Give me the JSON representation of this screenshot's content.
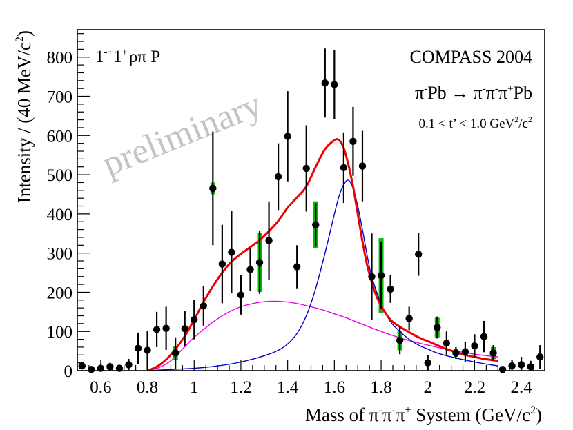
{
  "chart_data": {
    "type": "scatter",
    "title": "",
    "xlabel": {
      "main": "Mass of π",
      "s1": "-",
      "mid1": "π",
      "s2": "-",
      "mid2": "π",
      "s3": "+",
      "tail": " System (GeV/c",
      "s4": "2",
      "close": ")"
    },
    "ylabel": {
      "main": "Intensity / (40 MeV/c",
      "sup": "2",
      "close": ")"
    },
    "xlim": [
      0.5,
      2.5
    ],
    "ylim": [
      0,
      870
    ],
    "x_major_ticks": [
      0.6,
      0.8,
      1.0,
      1.2,
      1.4,
      1.6,
      1.8,
      2.0,
      2.2,
      2.4
    ],
    "x_tick_labels": [
      "0.6",
      "0.8",
      "1",
      "1.2",
      "1.4",
      "1.6",
      "1.8",
      "2",
      "2.2",
      "2.4"
    ],
    "y_major_ticks": [
      0,
      100,
      200,
      300,
      400,
      500,
      600,
      700,
      800
    ],
    "y_tick_labels": [
      "0",
      "100",
      "200",
      "300",
      "400",
      "500",
      "600",
      "700",
      "800"
    ],
    "annotations": {
      "wave": {
        "a": "1",
        "b": "-+",
        "c": "1",
        "d": "+",
        "e": "ρπ P"
      },
      "experiment": "COMPASS 2004",
      "reaction": {
        "a": "π",
        "b": "-",
        "c": "Pb → π",
        "d": "-",
        "e": "π",
        "f": "-",
        "g": "π",
        "h": "+",
        "i": "Pb"
      },
      "tcut": {
        "a": "0.1 < t’ < 1.0 GeV",
        "b": "2",
        "c": "/c",
        "d": "2"
      },
      "watermark": "preliminary"
    },
    "colors": {
      "total_fit": "#ee0000",
      "resonance": "#0000cc",
      "background": "#ee00ee",
      "systematic": "#00bb00",
      "points": "#000000"
    },
    "points": [
      {
        "x": 0.52,
        "y": 12,
        "err": 8
      },
      {
        "x": 0.56,
        "y": 3,
        "err": 5
      },
      {
        "x": 0.6,
        "y": 6,
        "err": 8
      },
      {
        "x": 0.64,
        "y": 10,
        "err": 10
      },
      {
        "x": 0.68,
        "y": 6,
        "err": 8
      },
      {
        "x": 0.72,
        "y": 15,
        "err": 15
      },
      {
        "x": 0.76,
        "y": 57,
        "err": 40
      },
      {
        "x": 0.8,
        "y": 52,
        "err": 50
      },
      {
        "x": 0.84,
        "y": 105,
        "err": 45
      },
      {
        "x": 0.88,
        "y": 108,
        "err": 55
      },
      {
        "x": 0.92,
        "y": 45,
        "err": 40,
        "sys": 18
      },
      {
        "x": 0.96,
        "y": 107,
        "err": 45
      },
      {
        "x": 1.0,
        "y": 130,
        "err": 50
      },
      {
        "x": 1.04,
        "y": 165,
        "err": 50
      },
      {
        "x": 1.08,
        "y": 465,
        "err": 145,
        "sys": 15
      },
      {
        "x": 1.12,
        "y": 272,
        "err": 100
      },
      {
        "x": 1.16,
        "y": 302,
        "err": 105
      },
      {
        "x": 1.2,
        "y": 193,
        "err": 50
      },
      {
        "x": 1.24,
        "y": 258,
        "err": 55
      },
      {
        "x": 1.28,
        "y": 276,
        "err": 80,
        "sys": 75
      },
      {
        "x": 1.32,
        "y": 332,
        "err": 100
      },
      {
        "x": 1.36,
        "y": 495,
        "err": 85
      },
      {
        "x": 1.4,
        "y": 598,
        "err": 115
      },
      {
        "x": 1.44,
        "y": 265,
        "err": 55
      },
      {
        "x": 1.48,
        "y": 516,
        "err": 110
      },
      {
        "x": 1.52,
        "y": 372,
        "err": 55,
        "sys": 60
      },
      {
        "x": 1.56,
        "y": 734,
        "err": 88
      },
      {
        "x": 1.6,
        "y": 730,
        "err": 88
      },
      {
        "x": 1.64,
        "y": 518,
        "err": 90
      },
      {
        "x": 1.68,
        "y": 585,
        "err": 88
      },
      {
        "x": 1.72,
        "y": 522,
        "err": 90
      },
      {
        "x": 1.76,
        "y": 240,
        "err": 110
      },
      {
        "x": 1.8,
        "y": 243,
        "err": 85,
        "sys": 95
      },
      {
        "x": 1.84,
        "y": 208,
        "err": 35
      },
      {
        "x": 1.88,
        "y": 77,
        "err": 35,
        "sys": 25
      },
      {
        "x": 1.92,
        "y": 133,
        "err": 30
      },
      {
        "x": 1.96,
        "y": 297,
        "err": 55
      },
      {
        "x": 2.0,
        "y": 20,
        "err": 20
      },
      {
        "x": 2.04,
        "y": 110,
        "err": 28,
        "sys": 25
      },
      {
        "x": 2.08,
        "y": 70,
        "err": 30
      },
      {
        "x": 2.12,
        "y": 45,
        "err": 15,
        "sys": 10
      },
      {
        "x": 2.16,
        "y": 48,
        "err": 25
      },
      {
        "x": 2.2,
        "y": 63,
        "err": 30
      },
      {
        "x": 2.24,
        "y": 87,
        "err": 40
      },
      {
        "x": 2.28,
        "y": 45,
        "err": 20,
        "sys": 15
      },
      {
        "x": 2.32,
        "y": 3,
        "err": 5
      },
      {
        "x": 2.36,
        "y": 12,
        "err": 15
      },
      {
        "x": 2.4,
        "y": 15,
        "err": 20
      },
      {
        "x": 2.44,
        "y": 10,
        "err": 15
      },
      {
        "x": 2.48,
        "y": 35,
        "err": 30
      }
    ],
    "curves": [
      {
        "name": "total fit",
        "color_key": "total_fit",
        "x": [
          0.8,
          0.84,
          0.88,
          0.92,
          0.96,
          1.0,
          1.04,
          1.08,
          1.12,
          1.16,
          1.2,
          1.24,
          1.28,
          1.32,
          1.36,
          1.4,
          1.44,
          1.48,
          1.52,
          1.56,
          1.6,
          1.62,
          1.64,
          1.66,
          1.68,
          1.7,
          1.72,
          1.74,
          1.76,
          1.78,
          1.8,
          1.84,
          1.88,
          1.92,
          1.96,
          2.0,
          2.04,
          2.08,
          2.12,
          2.16,
          2.2,
          2.24,
          2.3
        ],
        "y": [
          0,
          10,
          28,
          55,
          88,
          130,
          175,
          215,
          250,
          278,
          298,
          315,
          333,
          356,
          382,
          416,
          442,
          470,
          520,
          565,
          588,
          588,
          568,
          525,
          470,
          400,
          330,
          270,
          225,
          190,
          165,
          130,
          112,
          98,
          85,
          75,
          65,
          55,
          47,
          40,
          35,
          30,
          25
        ]
      },
      {
        "name": "resonance",
        "color_key": "resonance",
        "x": [
          0.8,
          0.9,
          1.0,
          1.1,
          1.2,
          1.3,
          1.36,
          1.4,
          1.44,
          1.48,
          1.52,
          1.56,
          1.6,
          1.62,
          1.64,
          1.66,
          1.68,
          1.7,
          1.72,
          1.74,
          1.76,
          1.8,
          1.84,
          1.88,
          1.92,
          1.96,
          2.0,
          2.04,
          2.1,
          2.2,
          2.3
        ],
        "y": [
          0,
          3,
          6,
          12,
          22,
          38,
          52,
          68,
          95,
          140,
          210,
          300,
          400,
          445,
          475,
          486,
          465,
          420,
          360,
          295,
          240,
          170,
          125,
          100,
          80,
          65,
          55,
          45,
          35,
          22,
          12
        ]
      },
      {
        "name": "background",
        "color_key": "background",
        "x": [
          0.8,
          0.85,
          0.9,
          0.95,
          1.0,
          1.05,
          1.1,
          1.15,
          1.2,
          1.25,
          1.3,
          1.35,
          1.4,
          1.45,
          1.5,
          1.55,
          1.6,
          1.65,
          1.7,
          1.8,
          1.9,
          2.0,
          2.1,
          2.2,
          2.3
        ],
        "y": [
          0,
          8,
          25,
          55,
          85,
          110,
          132,
          150,
          163,
          171,
          176,
          177,
          175,
          170,
          163,
          155,
          145,
          135,
          123,
          100,
          80,
          65,
          52,
          42,
          35
        ]
      }
    ]
  }
}
